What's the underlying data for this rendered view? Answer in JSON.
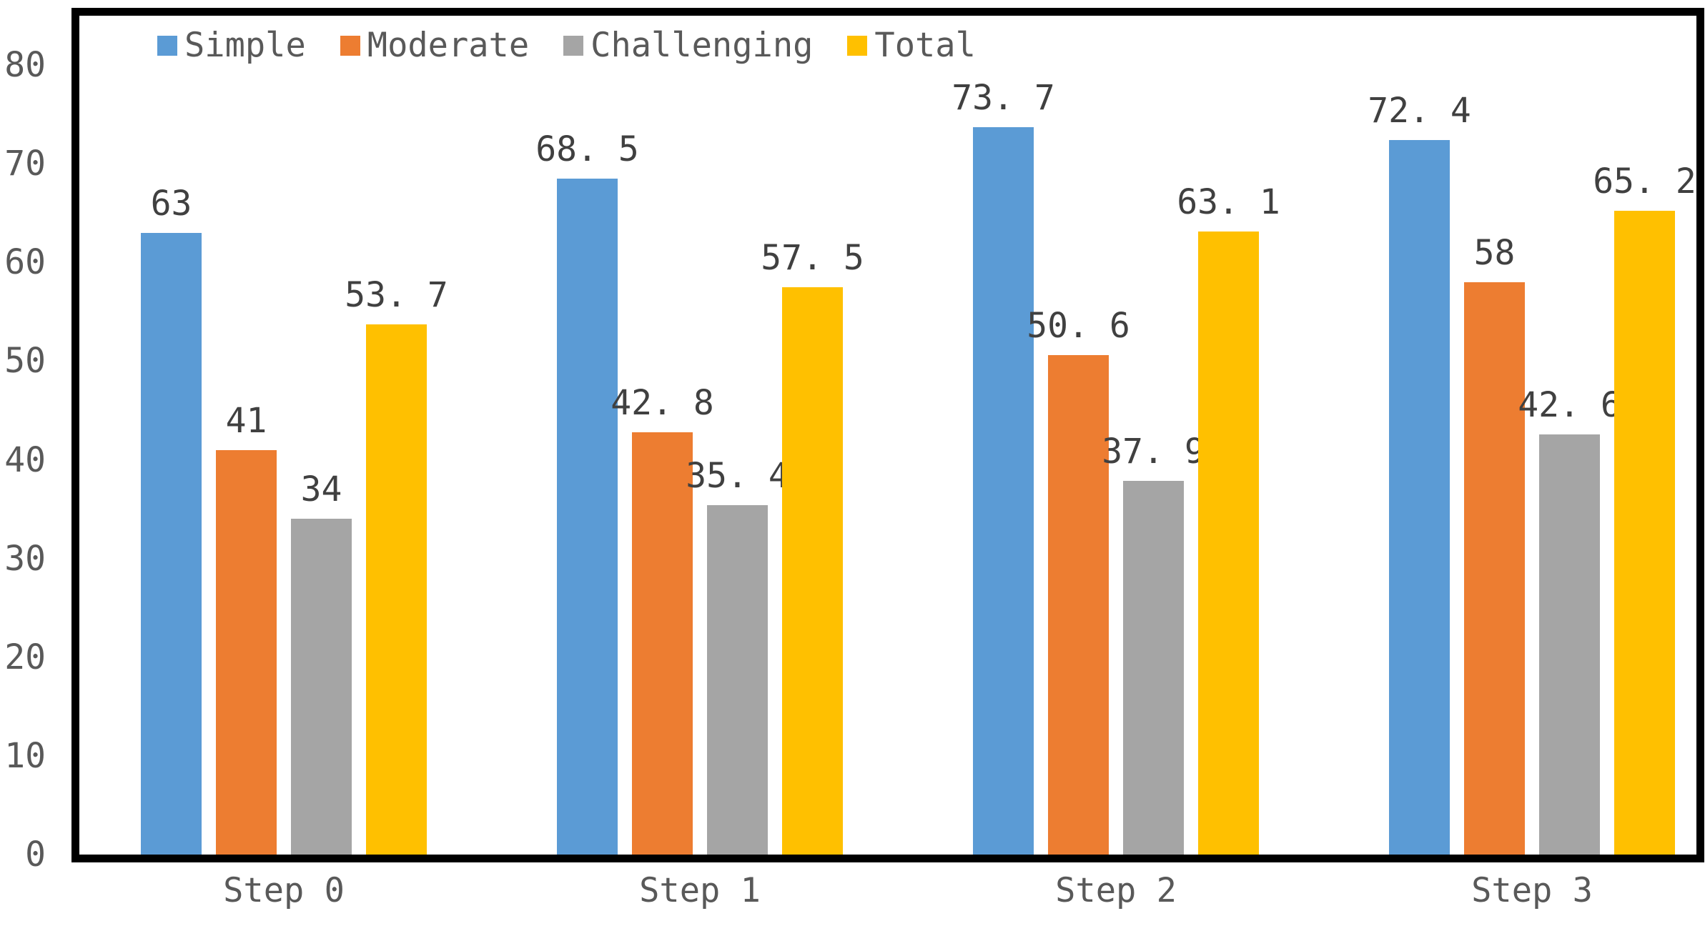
{
  "chart_data": {
    "type": "bar",
    "categories": [
      "Step 0",
      "Step 1",
      "Step 2",
      "Step 3"
    ],
    "series": [
      {
        "name": "Simple",
        "color": "#5B9BD5",
        "values": [
          63,
          68.5,
          73.7,
          72.4
        ],
        "labels": [
          "63",
          "68. 5",
          "73. 7",
          "72. 4"
        ]
      },
      {
        "name": "Moderate",
        "color": "#ED7D31",
        "values": [
          41,
          42.8,
          50.6,
          58
        ],
        "labels": [
          "41",
          "42. 8",
          "50. 6",
          "58"
        ]
      },
      {
        "name": "Challenging",
        "color": "#A5A5A5",
        "values": [
          34,
          35.4,
          37.9,
          42.6
        ],
        "labels": [
          "34",
          "35. 4",
          "37. 9",
          "42. 6"
        ]
      },
      {
        "name": "Total",
        "color": "#FFC000",
        "values": [
          53.7,
          57.5,
          63.1,
          65.2
        ],
        "labels": [
          "53. 7",
          "57. 5",
          "63. 1",
          "65. 2"
        ]
      }
    ],
    "title": "",
    "xlabel": "",
    "ylabel": "",
    "ylim": [
      0,
      85
    ],
    "yticks": [
      0,
      10,
      20,
      30,
      40,
      50,
      60,
      70,
      80
    ],
    "grid": false,
    "legend_position": "top-left-inside",
    "plot_border_color": "#000000",
    "plot_background": "#ffffff",
    "tick_label_color": "#595959",
    "value_label_color": "#404040"
  }
}
